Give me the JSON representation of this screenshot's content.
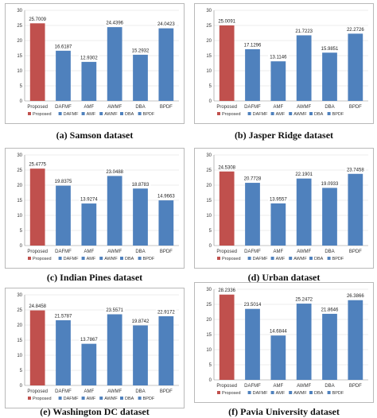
{
  "colors": {
    "proposed": "#c0504d",
    "others": "#4f81bd"
  },
  "chart_data": [
    {
      "type": "bar",
      "caption": "(a)  Samson dataset",
      "categories": [
        "Proposed",
        "DAFMF",
        "AMF",
        "AWMF",
        "DBA",
        "BPDF"
      ],
      "values": [
        25.7009,
        16.6187,
        12.9302,
        24.4396,
        15.2932,
        24.0423
      ],
      "labels": [
        "25.7009",
        "16.6187",
        "12.9302",
        "24.4396",
        "15.2932",
        "24.0423"
      ],
      "yticks": [
        "0",
        "5",
        "10",
        "15",
        "20",
        "25",
        "30"
      ],
      "ylim": [
        0,
        30
      ],
      "legend": [
        "Proposed",
        "DAFMF",
        "AMF",
        "AWMF",
        "DBA",
        "BPDF"
      ],
      "legend_position": "bottom"
    },
    {
      "type": "bar",
      "caption": "(b)  Jasper Ridge dataset",
      "categories": [
        "Proposed",
        "DAFMF",
        "AMF",
        "AWMF",
        "DBA",
        "BPDF"
      ],
      "values": [
        25.0091,
        17.1296,
        13.1146,
        21.7223,
        15.9851,
        22.2726
      ],
      "labels": [
        "25.0091",
        "17.1296",
        "13.1146",
        "21.7223",
        "15.9851",
        "22.2726"
      ],
      "yticks": [
        "0",
        "5",
        "10",
        "15",
        "20",
        "25",
        "30"
      ],
      "ylim": [
        0,
        30
      ],
      "legend": [
        "Proposed",
        "DAFMF",
        "AMF",
        "AWMF",
        "DBA",
        "BPDF"
      ],
      "legend_position": "bottom"
    },
    {
      "type": "bar",
      "caption": "(c)  Indian Pines dataset",
      "categories": [
        "Proposed",
        "DAFMF",
        "AMF",
        "AWMF",
        "DBA",
        "BPDF"
      ],
      "values": [
        25.4775,
        19.8375,
        13.9274,
        23.0488,
        18.8783,
        14.9663
      ],
      "labels": [
        "25.4775",
        "19.8375",
        "13.9274",
        "23.0488",
        "18.8783",
        "14.9663"
      ],
      "yticks": [
        "0",
        "5",
        "10",
        "15",
        "20",
        "25",
        "30"
      ],
      "ylim": [
        0,
        30
      ],
      "legend": [
        "Proposed",
        "DAFMF",
        "AMF",
        "AWMF",
        "DBA",
        "BPDF"
      ],
      "legend_position": "bottom"
    },
    {
      "type": "bar",
      "caption": "(d)  Urban dataset",
      "categories": [
        "Proposed",
        "DAFMF",
        "AMF",
        "AWMF",
        "DBA",
        "BPDF"
      ],
      "values": [
        24.5308,
        20.7728,
        13.9557,
        22.1901,
        19.0933,
        23.7458
      ],
      "labels": [
        "24.5308",
        "20.7728",
        "13.9557",
        "22.1901",
        "19.0933",
        "23.7458"
      ],
      "yticks": [
        "0",
        "5",
        "10",
        "15",
        "20",
        "25",
        "30"
      ],
      "ylim": [
        0,
        30
      ],
      "legend": [
        "Proposed",
        "DAFMF",
        "AMF",
        "AWMF",
        "DBA",
        "BPDF"
      ],
      "legend_position": "bottom"
    },
    {
      "type": "bar",
      "caption": "(e)  Washington DC dataset",
      "categories": [
        "Proposed",
        "DAFMF",
        "AMF",
        "AWMF",
        "DBA",
        "BPDF"
      ],
      "values": [
        24.8458,
        21.5787,
        13.7867,
        23.5571,
        19.8742,
        22.9172
      ],
      "labels": [
        "24.8458",
        "21.5787",
        "13.7867",
        "23.5571",
        "19.8742",
        "22.9172"
      ],
      "yticks": [
        "0",
        "5",
        "10",
        "15",
        "20",
        "25",
        "30"
      ],
      "ylim": [
        0,
        30
      ],
      "legend": [
        "Proposed",
        "DAFMF",
        "AMF",
        "AWMF",
        "DBA",
        "BPDF"
      ],
      "legend_position": "bottom"
    },
    {
      "type": "bar",
      "caption": "(f)  Pavia University dataset",
      "categories": [
        "Proposed",
        "DAFMF",
        "AMF",
        "AWMF",
        "DBA",
        "BPDF"
      ],
      "values": [
        28.2336,
        23.5014,
        14.6844,
        25.2472,
        21.8646,
        26.3866
      ],
      "labels": [
        "28.2336",
        "23.5014",
        "14.6844",
        "25.2472",
        "21.8646",
        "26.3866"
      ],
      "yticks": [
        "0",
        "5",
        "10",
        "15",
        "20",
        "25",
        "30"
      ],
      "ylim": [
        0,
        30
      ],
      "legend": [
        "Proposed",
        "DAFMF",
        "AMF",
        "AWMF",
        "DBA",
        "BPDF"
      ],
      "legend_position": "bottom"
    }
  ]
}
